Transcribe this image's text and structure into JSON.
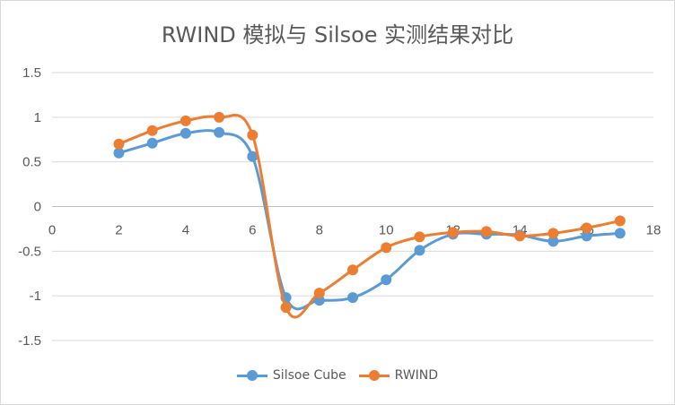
{
  "chart_data": {
    "type": "line",
    "title": "RWIND 模拟与 Silsoe 实测结果对比",
    "xlim": [
      0,
      18
    ],
    "ylim": [
      -1.5,
      1.5
    ],
    "x_ticks": [
      0,
      2,
      4,
      6,
      8,
      10,
      12,
      14,
      16,
      18
    ],
    "y_ticks": [
      1.5,
      1,
      0.5,
      0,
      -0.5,
      -1,
      -1.5
    ],
    "x_tick_labels": [
      "0",
      "2",
      "4",
      "6",
      "8",
      "10",
      "12",
      "14",
      "16",
      "18"
    ],
    "y_tick_labels": [
      "1.5",
      "1",
      "0.5",
      "0",
      "-0.5",
      "-1",
      "-1.5"
    ],
    "grid": "horizontal",
    "smooth": true,
    "legend_position": "bottom",
    "series": [
      {
        "name": "Silsoe Cube",
        "color": "#5b9bd5",
        "x": [
          2,
          3,
          4,
          5,
          6,
          7,
          8,
          9,
          10,
          11,
          12,
          13,
          14,
          15,
          16,
          17
        ],
        "y": [
          0.6,
          0.71,
          0.82,
          0.83,
          0.56,
          -1.02,
          -1.05,
          -1.02,
          -0.82,
          -0.49,
          -0.31,
          -0.31,
          -0.32,
          -0.39,
          -0.33,
          -0.3
        ]
      },
      {
        "name": "RWIND",
        "color": "#ed7d31",
        "x": [
          2,
          3,
          4,
          5,
          6,
          7,
          8,
          9,
          10,
          11,
          12,
          13,
          14,
          15,
          16,
          17
        ],
        "y": [
          0.7,
          0.85,
          0.96,
          1.0,
          0.8,
          -1.13,
          -0.97,
          -0.71,
          -0.46,
          -0.34,
          -0.29,
          -0.28,
          -0.33,
          -0.3,
          -0.24,
          -0.16
        ]
      }
    ]
  }
}
